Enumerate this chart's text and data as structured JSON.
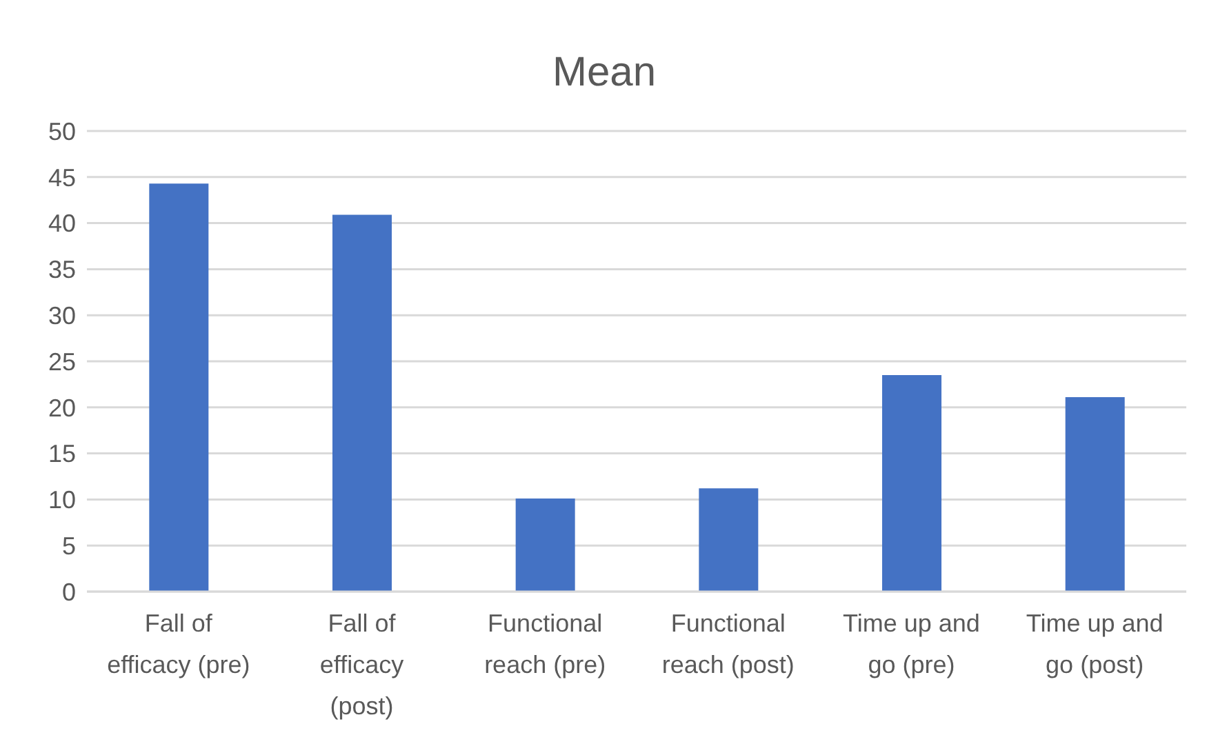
{
  "chart_data": {
    "type": "bar",
    "title": "Mean",
    "categories": [
      "Fall of efficacy (pre)",
      "Fall of efficacy (post)",
      "Functional reach (pre)",
      "Functional reach (post)",
      "Time up and go (pre)",
      "Time up and go (post)"
    ],
    "values": [
      44.3,
      40.9,
      10.1,
      11.2,
      23.5,
      21.1
    ],
    "color": "#4472c4",
    "ylim": [
      0,
      50
    ],
    "yticks": [
      0,
      5,
      10,
      15,
      20,
      25,
      30,
      35,
      40,
      45,
      50
    ],
    "grid": "y"
  }
}
